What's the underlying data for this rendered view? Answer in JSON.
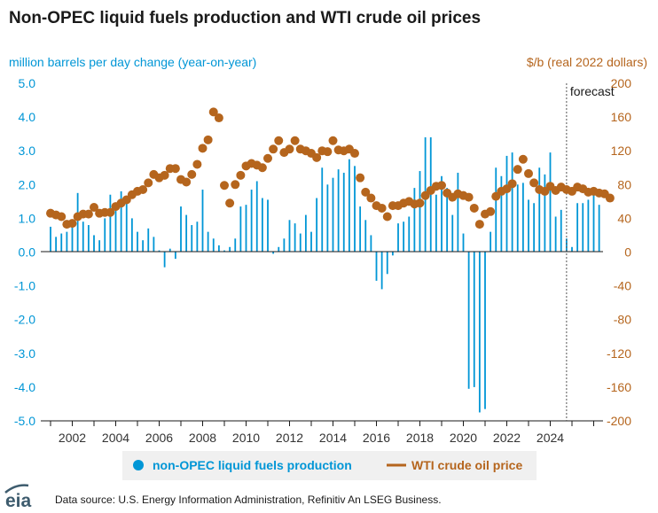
{
  "colors": {
    "production": "#0096d6",
    "price": "#b5651d",
    "text": "#1a1a1a",
    "legend_bg": "#f0f0f0"
  },
  "chart_data": {
    "type": "bar+scatter",
    "title": "Non-OPEC liquid fuels production and WTI crude oil prices",
    "left_axis": {
      "label": "million barrels per day change (year-on-year)",
      "ylim": [
        -5,
        5
      ],
      "ticks": [
        "5.0",
        "4.0",
        "3.0",
        "2.0",
        "1.0",
        "0.0",
        "-1.0",
        "-2.0",
        "-3.0",
        "-4.0",
        "-5.0"
      ]
    },
    "right_axis": {
      "label": "$/b (real 2022 dollars)",
      "ylim": [
        -200,
        200
      ],
      "ticks": [
        "200",
        "160",
        "120",
        "80",
        "40",
        "0",
        "-40",
        "-80",
        "-120",
        "-160",
        "-200"
      ]
    },
    "x_axis": {
      "range": [
        2001,
        2026
      ],
      "ticks": [
        "2002",
        "2004",
        "2006",
        "2008",
        "2010",
        "2012",
        "2014",
        "2016",
        "2018",
        "2020",
        "2022",
        "2024"
      ]
    },
    "forecast": {
      "label": "forecast",
      "start": 2024.75
    },
    "grid": false,
    "legend_position": "bottom",
    "series": [
      {
        "name": "non-OPEC liquid fuels production",
        "type": "bar",
        "axis": "left",
        "start": 2001.0,
        "step": 0.25,
        "values": [
          0.75,
          0.45,
          0.55,
          0.6,
          0.8,
          1.75,
          0.9,
          0.8,
          0.5,
          0.35,
          1.0,
          1.7,
          1.3,
          1.8,
          1.45,
          1.0,
          0.6,
          0.35,
          0.7,
          0.45,
          0.05,
          -0.45,
          0.1,
          -0.2,
          1.35,
          1.1,
          0.8,
          0.9,
          1.85,
          0.6,
          0.4,
          0.2,
          0.05,
          0.15,
          0.4,
          1.35,
          1.4,
          1.85,
          2.1,
          1.6,
          1.55,
          -0.05,
          0.15,
          0.4,
          0.95,
          0.85,
          0.55,
          1.1,
          0.6,
          1.6,
          2.5,
          2.0,
          2.2,
          2.45,
          2.35,
          2.75,
          2.55,
          1.35,
          0.95,
          0.5,
          -0.85,
          -1.1,
          -0.65,
          -0.1,
          0.85,
          0.9,
          1.05,
          1.9,
          2.4,
          3.4,
          3.4,
          1.7,
          2.25,
          1.9,
          1.1,
          2.35,
          0.55,
          -4.05,
          -4.0,
          -4.75,
          -4.65,
          0.6,
          2.5,
          2.25,
          2.85,
          2.95,
          2.0,
          2.05,
          1.55,
          1.45,
          2.5,
          2.3,
          2.95,
          1.05,
          1.25,
          0.4,
          0.15,
          1.45,
          1.45,
          1.55,
          1.9,
          1.4
        ]
      },
      {
        "name": "WTI crude oil price",
        "type": "scatter",
        "axis": "right",
        "start": 2001.0,
        "step": 0.25,
        "values": [
          46,
          44,
          42,
          33,
          34,
          42,
          45,
          45,
          53,
          46,
          47,
          47,
          54,
          58,
          62,
          68,
          72,
          74,
          82,
          92,
          88,
          91,
          99,
          99,
          86,
          83,
          92,
          104,
          123,
          133,
          166,
          159,
          79,
          58,
          80,
          91,
          102,
          105,
          103,
          100,
          111,
          122,
          132,
          118,
          122,
          132,
          122,
          120,
          117,
          112,
          120,
          119,
          132,
          121,
          120,
          122,
          117,
          88,
          71,
          64,
          55,
          52,
          42,
          55,
          55,
          58,
          60,
          57,
          58,
          67,
          73,
          78,
          79,
          70,
          65,
          69,
          67,
          65,
          52,
          33,
          45,
          48,
          66,
          72,
          75,
          81,
          98,
          110,
          93,
          82,
          74,
          72,
          78,
          73,
          77,
          74,
          72,
          77,
          75,
          71,
          72,
          70,
          69,
          64
        ]
      }
    ],
    "legend": [
      {
        "label": "non-OPEC liquid fuels production",
        "marker": "dot"
      },
      {
        "label": "WTI crude oil price",
        "marker": "line"
      }
    ]
  },
  "source": "Data source: U.S. Energy Information Administration, Refinitiv An LSEG Business.",
  "logo_text": "eia"
}
